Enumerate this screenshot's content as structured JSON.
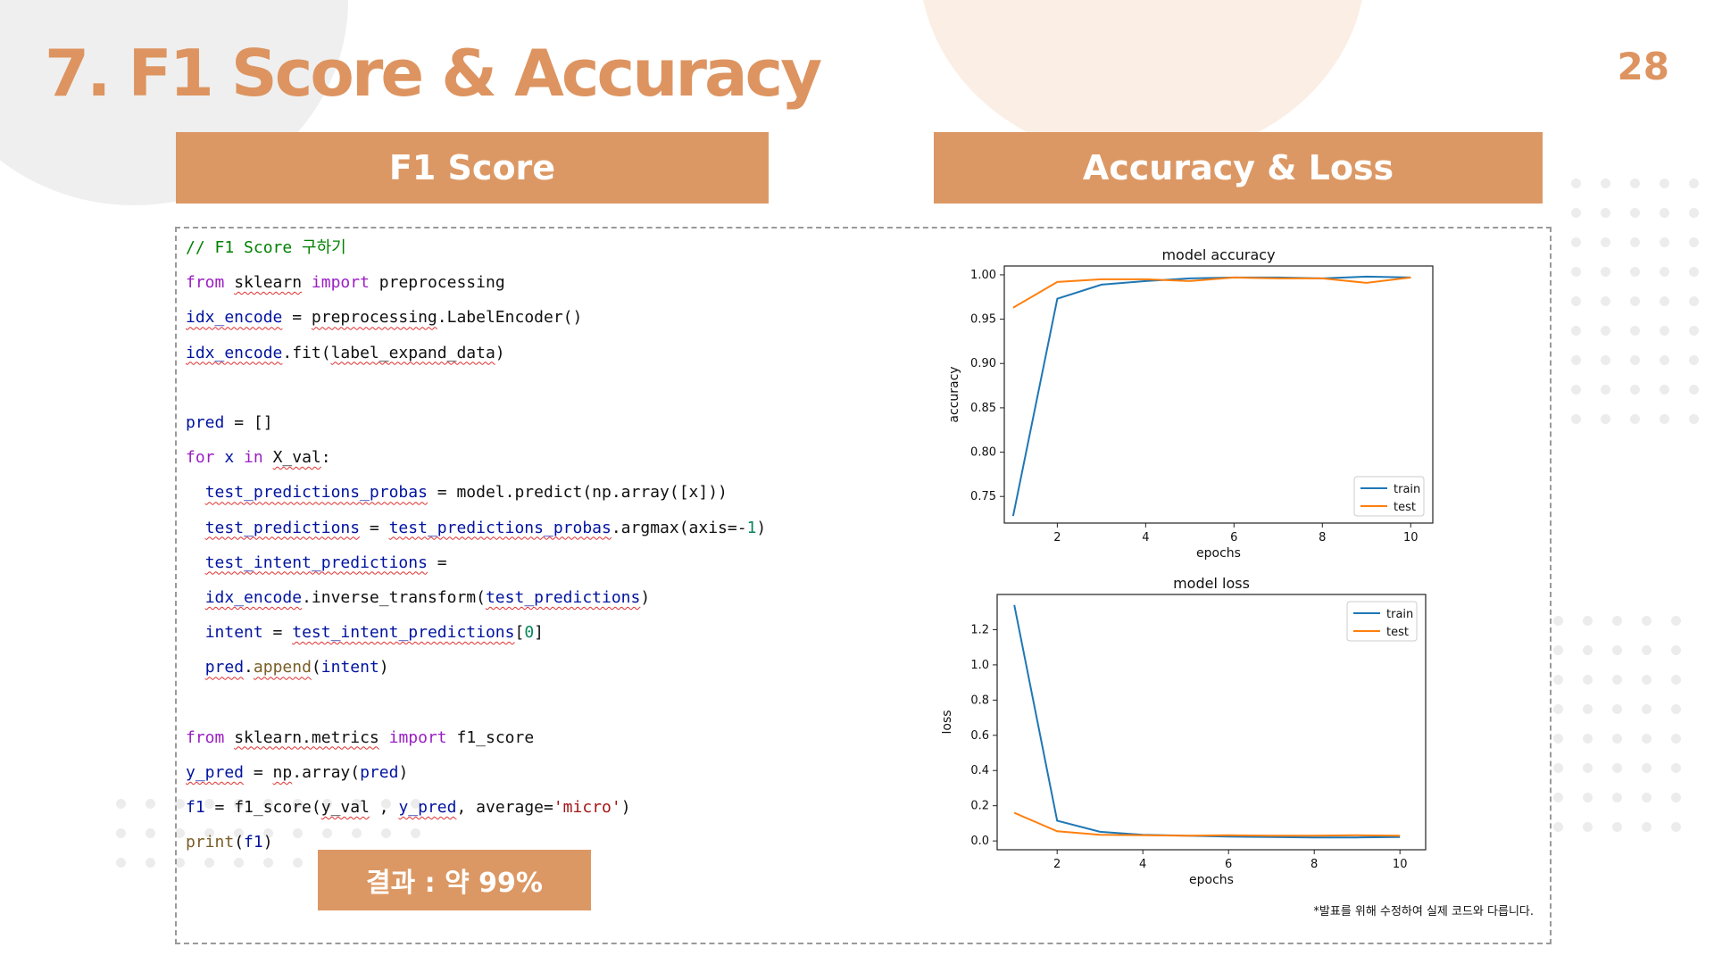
{
  "slide": {
    "title": "7. F1 Score & Accuracy",
    "page_number": "28",
    "accent_color": "#dc9864"
  },
  "left_panel": {
    "header": "F1 Score",
    "code_lines": [
      [
        {
          "t": "// F1 Score 구하기",
          "c": "cmt"
        }
      ],
      [
        {
          "t": "from",
          "c": "kw"
        },
        {
          "t": " "
        },
        {
          "t": "sklearn",
          "c": "sq"
        },
        {
          "t": " "
        },
        {
          "t": "import",
          "c": "kw"
        },
        {
          "t": " preprocessing"
        }
      ],
      [
        {
          "t": "idx_encode",
          "c": "var sq"
        },
        {
          "t": " = "
        },
        {
          "t": "preprocessing",
          "c": "sq"
        },
        {
          "t": ".LabelEncoder()"
        }
      ],
      [
        {
          "t": "idx_encode",
          "c": "var sq"
        },
        {
          "t": ".fit("
        },
        {
          "t": "label_expand_data",
          "c": "sq"
        },
        {
          "t": ")"
        }
      ],
      [],
      [
        {
          "t": "pred",
          "c": "var"
        },
        {
          "t": " = []"
        }
      ],
      [
        {
          "t": "for",
          "c": "kw"
        },
        {
          "t": " "
        },
        {
          "t": "x",
          "c": "var"
        },
        {
          "t": " "
        },
        {
          "t": "in",
          "c": "kw"
        },
        {
          "t": " "
        },
        {
          "t": "X_val",
          "c": "sq"
        },
        {
          "t": ":"
        }
      ],
      [
        {
          "t": "  "
        },
        {
          "t": "test_predictions_probas",
          "c": "var sq"
        },
        {
          "t": " = model.predict(np.array([x]))"
        }
      ],
      [
        {
          "t": "  "
        },
        {
          "t": "test_predictions",
          "c": "var sq"
        },
        {
          "t": " = "
        },
        {
          "t": "test_predictions_probas",
          "c": "var sq"
        },
        {
          "t": ".argmax(axis=-"
        },
        {
          "t": "1",
          "c": "num"
        },
        {
          "t": ")"
        }
      ],
      [
        {
          "t": "  "
        },
        {
          "t": "test_intent_predictions",
          "c": "var sq"
        },
        {
          "t": " ="
        }
      ],
      [
        {
          "t": "  "
        },
        {
          "t": "idx_encode",
          "c": "var sq"
        },
        {
          "t": ".inverse_transform("
        },
        {
          "t": "test_predictions",
          "c": "var sq"
        },
        {
          "t": ")"
        }
      ],
      [
        {
          "t": "  "
        },
        {
          "t": "intent",
          "c": "var"
        },
        {
          "t": " = "
        },
        {
          "t": "test_intent_predictions",
          "c": "var sq"
        },
        {
          "t": "["
        },
        {
          "t": "0",
          "c": "num"
        },
        {
          "t": "]"
        }
      ],
      [
        {
          "t": "  "
        },
        {
          "t": "pred",
          "c": "var sq"
        },
        {
          "t": "."
        },
        {
          "t": "append",
          "c": "fn sq"
        },
        {
          "t": "("
        },
        {
          "t": "intent",
          "c": "var"
        },
        {
          "t": ")"
        }
      ],
      [],
      [
        {
          "t": "from",
          "c": "kw"
        },
        {
          "t": " "
        },
        {
          "t": "sklearn.metrics",
          "c": "sq"
        },
        {
          "t": " "
        },
        {
          "t": "import",
          "c": "kw"
        },
        {
          "t": " f1_score"
        }
      ],
      [
        {
          "t": "y_pred",
          "c": "var sq"
        },
        {
          "t": " = "
        },
        {
          "t": "np",
          "c": "sq"
        },
        {
          "t": ".array("
        },
        {
          "t": "pred",
          "c": "var"
        },
        {
          "t": ")"
        }
      ],
      [
        {
          "t": "f1",
          "c": "var"
        },
        {
          "t": " = f1_score("
        },
        {
          "t": "y_val",
          "c": "sq"
        },
        {
          "t": " , "
        },
        {
          "t": "y_pred",
          "c": "var sq"
        },
        {
          "t": ", average="
        },
        {
          "t": "'micro'",
          "c": "str"
        },
        {
          "t": ")"
        }
      ],
      [
        {
          "t": "print",
          "c": "fn"
        },
        {
          "t": "("
        },
        {
          "t": "f1",
          "c": "var"
        },
        {
          "t": ")"
        }
      ]
    ],
    "result_label": "결과 : 약 99%"
  },
  "right_panel": {
    "header": "Accuracy & Loss",
    "footnote": "*발표를 위해 수정하여 실제 코드와 다릅니다."
  },
  "chart_data": [
    {
      "type": "line",
      "title": "model accuracy",
      "xlabel": "epochs",
      "ylabel": "accuracy",
      "xlim": [
        0.8,
        10.5
      ],
      "ylim": [
        0.72,
        1.01
      ],
      "xticks": [
        2,
        4,
        6,
        8,
        10
      ],
      "yticks": [
        0.75,
        0.8,
        0.85,
        0.9,
        0.95,
        1.0
      ],
      "ytick_labels": [
        "0.75",
        "0.80",
        "0.85",
        "0.90",
        "0.95",
        "1.00"
      ],
      "legend_position": "lower-right",
      "grid": false,
      "x": [
        1,
        2,
        3,
        4,
        5,
        6,
        7,
        8,
        9,
        10
      ],
      "series": [
        {
          "name": "train",
          "color": "#1f77b4",
          "values": [
            0.728,
            0.973,
            0.989,
            0.993,
            0.996,
            0.997,
            0.997,
            0.996,
            0.998,
            0.997
          ]
        },
        {
          "name": "test",
          "color": "#ff7f0e",
          "values": [
            0.963,
            0.992,
            0.995,
            0.995,
            0.993,
            0.997,
            0.996,
            0.996,
            0.991,
            0.997
          ]
        }
      ]
    },
    {
      "type": "line",
      "title": "model loss",
      "xlabel": "epochs",
      "ylabel": "loss",
      "xlim": [
        0.6,
        10.6
      ],
      "ylim": [
        -0.05,
        1.4
      ],
      "xticks": [
        2,
        4,
        6,
        8,
        10
      ],
      "yticks": [
        0.0,
        0.2,
        0.4,
        0.6,
        0.8,
        1.0,
        1.2
      ],
      "ytick_labels": [
        "0.0",
        "0.2",
        "0.4",
        "0.6",
        "0.8",
        "1.0",
        "1.2"
      ],
      "legend_position": "upper-right",
      "grid": false,
      "x": [
        1,
        2,
        3,
        4,
        5,
        6,
        7,
        8,
        9,
        10
      ],
      "series": [
        {
          "name": "train",
          "color": "#1f77b4",
          "values": [
            1.34,
            0.115,
            0.052,
            0.035,
            0.03,
            0.025,
            0.022,
            0.02,
            0.02,
            0.022
          ]
        },
        {
          "name": "test",
          "color": "#ff7f0e",
          "values": [
            0.16,
            0.055,
            0.035,
            0.032,
            0.03,
            0.032,
            0.03,
            0.03,
            0.032,
            0.03
          ]
        }
      ]
    }
  ]
}
